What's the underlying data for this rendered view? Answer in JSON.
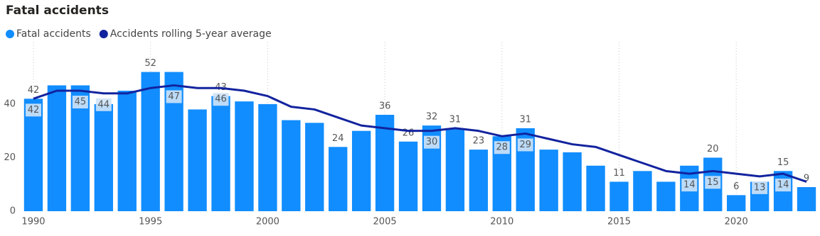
{
  "chart_data": {
    "type": "bar_line",
    "title": "Fatal accidents",
    "x": [
      1990,
      1991,
      1992,
      1993,
      1994,
      1995,
      1996,
      1997,
      1998,
      1999,
      2000,
      2001,
      2002,
      2003,
      2004,
      2005,
      2006,
      2007,
      2008,
      2009,
      2010,
      2011,
      2012,
      2013,
      2014,
      2015,
      2016,
      2017,
      2018,
      2019,
      2020,
      2021,
      2022,
      2023
    ],
    "xlim": [
      1989.5,
      2023.5
    ],
    "xticks": [
      1990,
      1995,
      2000,
      2005,
      2010,
      2015,
      2020
    ],
    "ylim": [
      0,
      63
    ],
    "yticks": [
      0,
      20,
      40
    ],
    "xgrid": true,
    "legend": "top-left",
    "series": [
      {
        "name": "Fatal accidents",
        "type": "bar",
        "color": "#118DFF",
        "values": [
          42,
          47,
          47,
          40,
          45,
          52,
          52,
          38,
          43,
          41,
          40,
          34,
          33,
          24,
          30,
          36,
          26,
          32,
          31,
          23,
          28,
          31,
          23,
          22,
          17,
          11,
          15,
          11,
          17,
          20,
          6,
          11,
          15,
          9
        ],
        "value_labels": [
          "42",
          null,
          null,
          null,
          null,
          "52",
          null,
          null,
          "43",
          null,
          null,
          null,
          null,
          "24",
          null,
          "36",
          "26",
          "32",
          "31",
          "23",
          null,
          "31",
          null,
          null,
          null,
          "11",
          null,
          null,
          null,
          "20",
          "6",
          null,
          "15",
          "9"
        ]
      },
      {
        "name": "Accidents rolling 5-year average",
        "type": "line",
        "color": "#12239E",
        "values": [
          42,
          45,
          45,
          44,
          44,
          46,
          47,
          46,
          46,
          45,
          43,
          39,
          38,
          35,
          32,
          31,
          30,
          30,
          31,
          30,
          28,
          29,
          27,
          25,
          24,
          21,
          18,
          15,
          14,
          15,
          14,
          13,
          14,
          11
        ],
        "value_labels": [
          "42",
          null,
          "45",
          "44",
          null,
          null,
          "47",
          null,
          "46",
          null,
          null,
          null,
          null,
          null,
          null,
          null,
          null,
          "30",
          null,
          null,
          "28",
          "29",
          null,
          null,
          null,
          null,
          null,
          null,
          "14",
          "15",
          null,
          "13",
          "14",
          null
        ]
      }
    ]
  }
}
